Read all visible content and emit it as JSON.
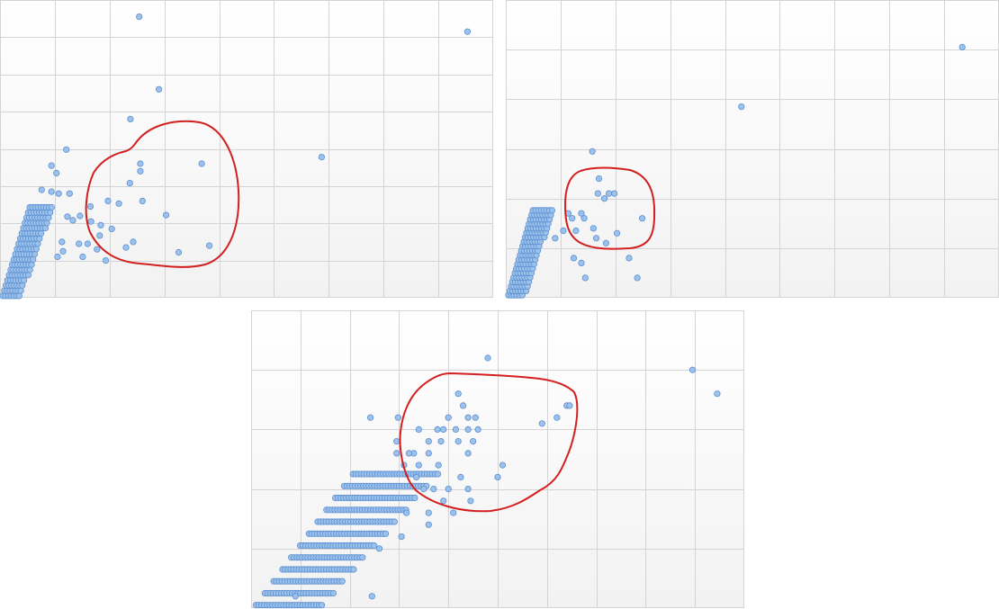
{
  "colors": {
    "point_fill": "#9cc2ec",
    "point_stroke": "#5b8fd0",
    "grid": "#d4d4d4",
    "plot_bg_top": "#ffffff",
    "plot_bg_bottom": "#f2f2f2",
    "highlight_outline": "#d21f1f"
  },
  "chart_data": [
    {
      "type": "scatter",
      "title": "",
      "xlabel": "",
      "ylabel": "",
      "grid": true,
      "legend": "none",
      "xlim": [
        0,
        9
      ],
      "ylim": [
        0,
        8
      ],
      "x_gridlines": 9,
      "y_gridlines": 8,
      "series": [
        {
          "points": [
            [
              2.54,
              7.55
            ],
            [
              8.53,
              7.15
            ],
            [
              2.9,
              5.6
            ],
            [
              2.38,
              4.8
            ],
            [
              1.21,
              3.98
            ],
            [
              0.94,
              3.55
            ],
            [
              1.03,
              3.35
            ],
            [
              0.76,
              2.9
            ],
            [
              1.27,
              2.8
            ],
            [
              5.87,
              3.78
            ],
            [
              2.56,
              3.6
            ],
            [
              2.56,
              3.4
            ],
            [
              3.68,
              3.6
            ],
            [
              2.37,
              3.08
            ],
            [
              1.97,
              2.6
            ],
            [
              2.17,
              2.53
            ],
            [
              2.6,
              2.6
            ],
            [
              1.65,
              2.45
            ],
            [
              3.03,
              2.22
            ],
            [
              1.46,
              2.2
            ],
            [
              1.66,
              2.05
            ],
            [
              1.84,
              1.95
            ],
            [
              2.04,
              1.85
            ],
            [
              1.82,
              1.67
            ],
            [
              1.6,
              1.45
            ],
            [
              2.43,
              1.5
            ],
            [
              2.3,
              1.35
            ],
            [
              3.26,
              1.22
            ],
            [
              3.82,
              1.4
            ],
            [
              1.93,
              1.0
            ],
            [
              1.77,
              1.3
            ],
            [
              1.51,
              1.1
            ],
            [
              1.07,
              2.8
            ],
            [
              0.94,
              2.85
            ],
            [
              1.23,
              2.18
            ],
            [
              1.44,
              1.45
            ],
            [
              1.33,
              2.08
            ],
            [
              1.13,
              1.5
            ],
            [
              1.15,
              1.25
            ],
            [
              1.05,
              1.1
            ]
          ]
        }
      ]
    },
    {
      "type": "scatter",
      "title": "",
      "xlabel": "",
      "ylabel": "",
      "grid": true,
      "legend": "none",
      "xlim": [
        0,
        9
      ],
      "ylim": [
        0,
        6
      ],
      "x_gridlines": 9,
      "y_gridlines": 6,
      "series": [
        {
          "points": [
            [
              8.33,
              5.05
            ],
            [
              4.3,
              3.85
            ],
            [
              1.58,
              2.95
            ],
            [
              1.7,
              2.4
            ],
            [
              1.68,
              2.1
            ],
            [
              1.88,
              2.1
            ],
            [
              1.98,
              2.1
            ],
            [
              1.8,
              2.0
            ],
            [
              1.14,
              1.7
            ],
            [
              1.38,
              1.7
            ],
            [
              2.49,
              1.6
            ],
            [
              1.43,
              1.6
            ],
            [
              1.28,
              1.35
            ],
            [
              1.6,
              1.4
            ],
            [
              1.21,
              1.6
            ],
            [
              1.65,
              1.2
            ],
            [
              1.83,
              1.1
            ],
            [
              2.03,
              1.3
            ],
            [
              1.05,
              1.35
            ],
            [
              2.25,
              0.8
            ],
            [
              1.24,
              0.8
            ],
            [
              2.4,
              0.4
            ],
            [
              1.38,
              0.7
            ],
            [
              1.45,
              0.4
            ],
            [
              0.9,
              1.2
            ]
          ]
        }
      ]
    },
    {
      "type": "scatter",
      "title": "",
      "xlabel": "",
      "ylabel": "",
      "grid": true,
      "legend": "none",
      "xlim": [
        0,
        10
      ],
      "ylim": [
        0,
        5
      ],
      "x_gridlines": 10,
      "y_gridlines": 5,
      "series": [
        {
          "points": [
            [
              4.8,
              4.2
            ],
            [
              8.95,
              4.0
            ],
            [
              9.45,
              3.6
            ],
            [
              6.4,
              3.4
            ],
            [
              6.46,
              3.4
            ],
            [
              4.2,
              3.6
            ],
            [
              4.3,
              3.4
            ],
            [
              2.42,
              3.2
            ],
            [
              2.98,
              3.2
            ],
            [
              4.0,
              3.2
            ],
            [
              4.4,
              3.2
            ],
            [
              4.55,
              3.2
            ],
            [
              5.9,
              3.1
            ],
            [
              6.2,
              3.2
            ],
            [
              3.78,
              3.0
            ],
            [
              3.9,
              3.0
            ],
            [
              4.15,
              3.0
            ],
            [
              4.4,
              3.0
            ],
            [
              4.6,
              3.0
            ],
            [
              3.4,
              3.0
            ],
            [
              3.6,
              2.8
            ],
            [
              3.3,
              2.6
            ],
            [
              3.85,
              2.8
            ],
            [
              4.2,
              2.8
            ],
            [
              4.5,
              2.8
            ],
            [
              3.6,
              2.6
            ],
            [
              3.8,
              2.4
            ],
            [
              4.4,
              2.6
            ],
            [
              5.1,
              2.4
            ],
            [
              2.95,
              2.8
            ],
            [
              3.1,
              2.4
            ],
            [
              3.4,
              2.4
            ],
            [
              2.95,
              2.6
            ],
            [
              3.2,
              2.6
            ],
            [
              4.25,
              2.2
            ],
            [
              4.4,
              2.0
            ],
            [
              5.0,
              2.2
            ],
            [
              4.0,
              2.0
            ],
            [
              3.9,
              1.8
            ],
            [
              4.45,
              1.8
            ],
            [
              4.1,
              1.6
            ],
            [
              3.5,
              2.0
            ],
            [
              3.7,
              2.0
            ],
            [
              3.35,
              2.2
            ],
            [
              3.6,
              1.6
            ],
            [
              3.6,
              1.4
            ],
            [
              3.05,
              1.2
            ],
            [
              2.6,
              1.0
            ],
            [
              2.45,
              0.2
            ],
            [
              3.15,
              1.6
            ],
            [
              0.9,
              0.2
            ]
          ]
        }
      ]
    }
  ]
}
